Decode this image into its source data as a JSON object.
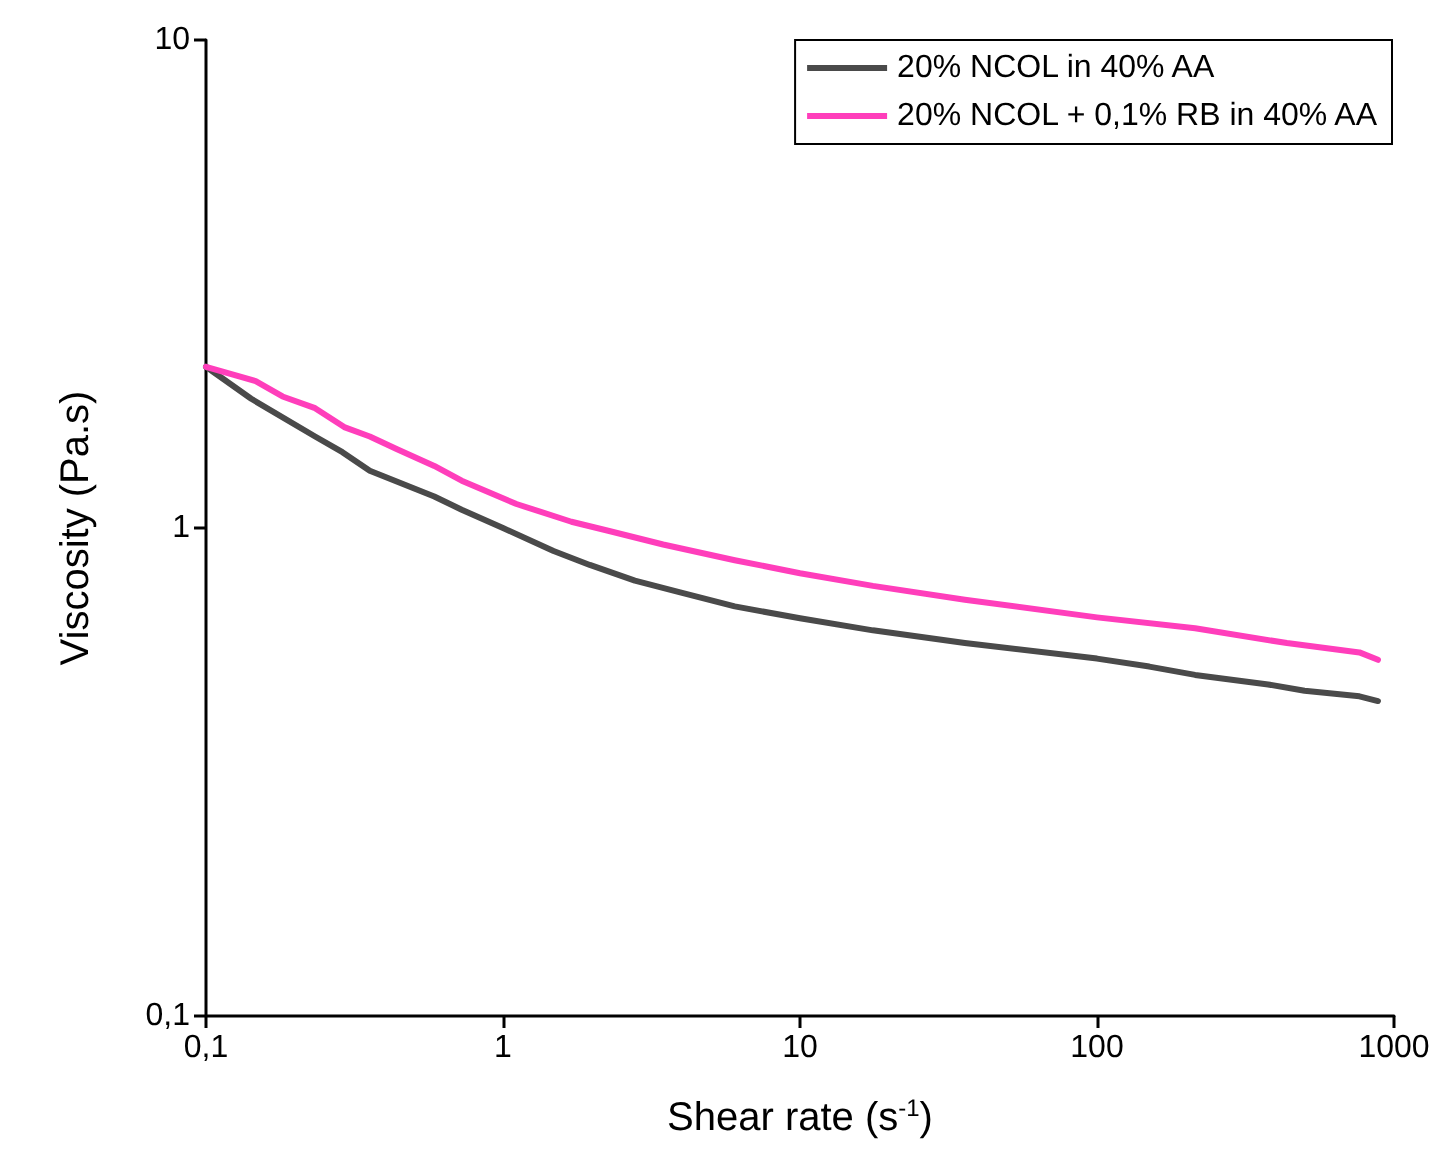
{
  "chart_data": {
    "type": "line",
    "xlabel": "Shear rate (s$^{-1}$)",
    "ylabel": "Viscosity (Pa.s)",
    "log": "xy",
    "grid": false,
    "legend": "top right",
    "marker": "none",
    "line_style": "solid",
    "xlim": [
      0.1,
      1000
    ],
    "xticks": [
      {
        "value": 0.1,
        "label": "0,1"
      },
      1,
      10,
      100,
      1000
    ],
    "ylim": [
      0.1,
      10
    ],
    "yticks": [
      {
        "value": 0.1,
        "label": "0,1"
      },
      1,
      10
    ],
    "series": [
      {
        "name": "20% NCOL in 40% AA",
        "color": "#4a4a4a",
        "x": [
          0.1,
          0.142,
          0.233,
          0.288,
          0.356,
          0.587,
          0.726,
          1,
          1.48,
          1.96,
          2.78,
          3.95,
          6.03,
          10,
          17.6,
          35.9,
          100,
          150,
          214,
          377,
          500,
          765,
          883
        ],
        "values": [
          2.14,
          1.84,
          1.54,
          1.43,
          1.31,
          1.16,
          1.09,
          1.0,
          0.897,
          0.84,
          0.78,
          0.738,
          0.691,
          0.653,
          0.617,
          0.581,
          0.54,
          0.52,
          0.5,
          0.478,
          0.464,
          0.452,
          0.442
        ]
      },
      {
        "name": "20% NCOL + 0,1% RB in 40% AA",
        "color": "#ff3ebb",
        "x": [
          0.1,
          0.147,
          0.181,
          0.233,
          0.292,
          0.356,
          0.44,
          0.587,
          0.726,
          1.11,
          1.7,
          2.26,
          3.46,
          6.03,
          10,
          17.6,
          35.9,
          100,
          214,
          436,
          765,
          883
        ],
        "values": [
          2.14,
          2.0,
          1.86,
          1.76,
          1.61,
          1.54,
          1.45,
          1.34,
          1.25,
          1.12,
          1.03,
          0.987,
          0.925,
          0.859,
          0.808,
          0.761,
          0.713,
          0.656,
          0.623,
          0.581,
          0.556,
          0.537
        ]
      }
    ]
  }
}
